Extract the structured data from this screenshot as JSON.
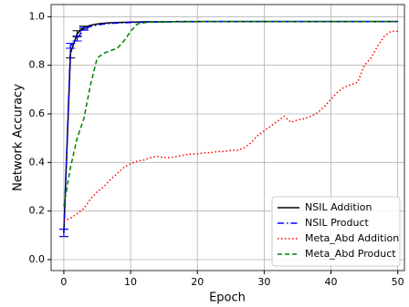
{
  "chart_data": {
    "type": "line",
    "x_label": "Epoch",
    "y_label": "Network Accuracy",
    "x": [
      0,
      1,
      2,
      3,
      4,
      5,
      6,
      7,
      8,
      9,
      10,
      11,
      12,
      13,
      14,
      15,
      16,
      17,
      18,
      19,
      20,
      21,
      22,
      23,
      24,
      25,
      26,
      27,
      28,
      29,
      30,
      31,
      32,
      33,
      34,
      35,
      36,
      37,
      38,
      39,
      40,
      41,
      42,
      43,
      44,
      45,
      46,
      47,
      48,
      49,
      50
    ],
    "xlim": [
      -1.9,
      51
    ],
    "ylim": [
      -0.045,
      1.05
    ],
    "xticks": [
      0,
      10,
      20,
      30,
      40,
      50
    ],
    "yticks": [
      {
        "value": 0,
        "label": "0.0"
      },
      {
        "value": 0.2,
        "label": "0.2"
      },
      {
        "value": 0.4,
        "label": "0.4"
      },
      {
        "value": 0.6,
        "label": "0.6"
      },
      {
        "value": 0.8,
        "label": "0.8"
      },
      {
        "value": 1,
        "label": "1.0"
      }
    ],
    "grid": true,
    "legend": "lower right",
    "series": [
      {
        "name": "NSIL Addition",
        "color": "#000000",
        "dash": "solid",
        "values": [
          0.11,
          0.85,
          0.93,
          0.955,
          0.965,
          0.97,
          0.973,
          0.975,
          0.976,
          0.977,
          0.978,
          0.978,
          0.979,
          0.979,
          0.979,
          0.979,
          0.979,
          0.98,
          0.98,
          0.98,
          0.98,
          0.98,
          0.98,
          0.98,
          0.98,
          0.98,
          0.98,
          0.98,
          0.98,
          0.98,
          0.98,
          0.98,
          0.98,
          0.98,
          0.98,
          0.98,
          0.98,
          0.98,
          0.98,
          0.98,
          0.98,
          0.98,
          0.98,
          0.98,
          0.98,
          0.98,
          0.98,
          0.98,
          0.98,
          0.98,
          0.98
        ],
        "errors": [
          0.015,
          0.02,
          0.012,
          0.006,
          null,
          null,
          null,
          null,
          null,
          null,
          null,
          null,
          null,
          null,
          null,
          null,
          null,
          null,
          null,
          null,
          null,
          null,
          null,
          null,
          null,
          null,
          null,
          null,
          null,
          null,
          null,
          null,
          null,
          null,
          null,
          null,
          null,
          null,
          null,
          null,
          null,
          null,
          null,
          null,
          null,
          null,
          null,
          null,
          null,
          null,
          null
        ]
      },
      {
        "name": "NSIL Product",
        "color": "#0000ff",
        "dash": "dashdot",
        "values": [
          0.11,
          0.88,
          0.91,
          0.95,
          0.96,
          0.965,
          0.97,
          0.972,
          0.974,
          0.975,
          0.976,
          0.977,
          0.977,
          0.978,
          0.978,
          0.978,
          0.979,
          0.979,
          0.979,
          0.979,
          0.979,
          0.98,
          0.98,
          0.98,
          0.98,
          0.98,
          0.98,
          0.98,
          0.98,
          0.98,
          0.98,
          0.98,
          0.98,
          0.98,
          0.98,
          0.98,
          0.98,
          0.98,
          0.98,
          0.98,
          0.98,
          0.98,
          0.98,
          0.98,
          0.98,
          0.98,
          0.98,
          0.98,
          0.98,
          0.98,
          0.98
        ],
        "errors": [
          0.015,
          0.01,
          0.01,
          0.006,
          null,
          null,
          null,
          null,
          null,
          null,
          null,
          null,
          null,
          null,
          null,
          null,
          null,
          null,
          null,
          null,
          null,
          null,
          null,
          null,
          null,
          null,
          null,
          null,
          null,
          null,
          null,
          null,
          null,
          null,
          null,
          null,
          null,
          null,
          null,
          null,
          null,
          null,
          null,
          null,
          null,
          null,
          null,
          null,
          null,
          null,
          null
        ]
      },
      {
        "name": "Meta_Abd Addition",
        "color": "#ff0000",
        "dash": "dotted",
        "values": [
          0.16,
          0.17,
          0.19,
          0.21,
          0.25,
          0.28,
          0.3,
          0.33,
          0.355,
          0.38,
          0.395,
          0.405,
          0.41,
          0.42,
          0.425,
          0.42,
          0.42,
          0.425,
          0.43,
          0.435,
          0.435,
          0.44,
          0.44,
          0.445,
          0.445,
          0.45,
          0.45,
          0.46,
          0.48,
          0.51,
          0.53,
          0.55,
          0.57,
          0.59,
          0.565,
          0.575,
          0.58,
          0.59,
          0.605,
          0.63,
          0.66,
          0.69,
          0.71,
          0.72,
          0.73,
          0.8,
          0.83,
          0.88,
          0.92,
          0.94,
          0.94
        ]
      },
      {
        "name": "Meta_Abd Product",
        "color": "#008000",
        "dash": "dashed",
        "values": [
          0.22,
          0.38,
          0.5,
          0.58,
          0.72,
          0.83,
          0.85,
          0.86,
          0.87,
          0.9,
          0.94,
          0.97,
          0.975,
          0.978,
          0.978,
          0.979,
          0.979,
          0.979,
          0.979,
          0.979,
          0.98,
          0.98,
          0.98,
          0.98,
          0.98,
          0.98,
          0.98,
          0.98,
          0.98,
          0.98,
          0.98,
          0.98,
          0.98,
          0.98,
          0.98,
          0.98,
          0.98,
          0.98,
          0.98,
          0.98,
          0.98,
          0.98,
          0.98,
          0.98,
          0.98,
          0.98,
          0.98,
          0.98,
          0.98,
          0.98,
          0.98
        ]
      }
    ]
  }
}
